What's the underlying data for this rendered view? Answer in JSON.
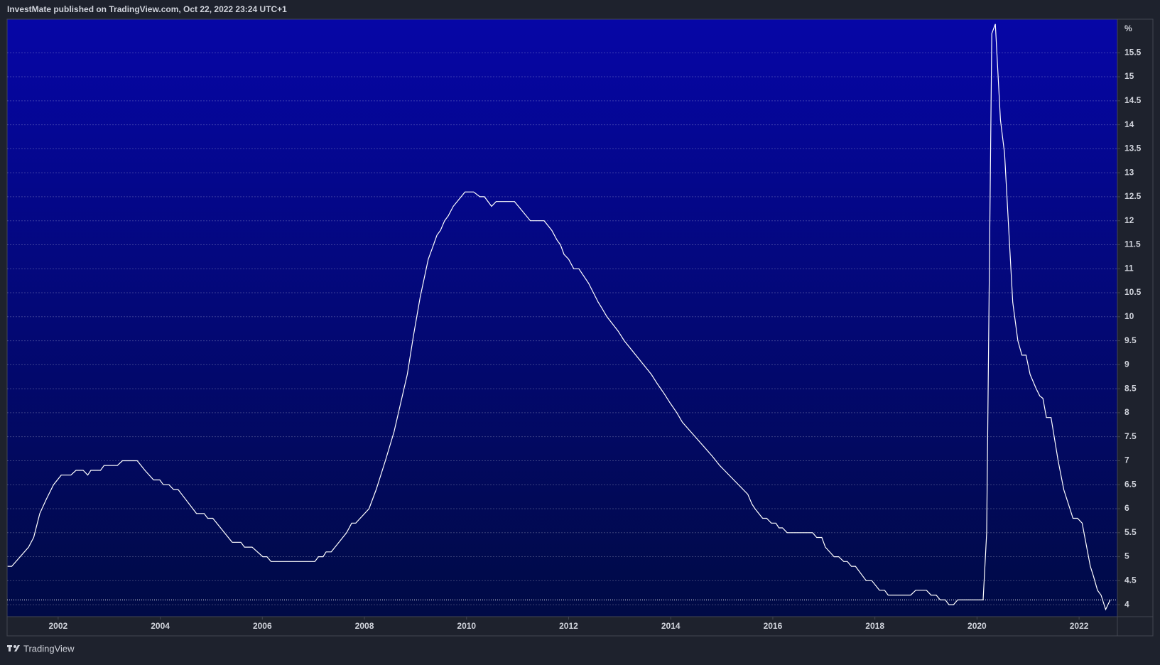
{
  "header": {
    "title": "InvestMate published on TradingView.com, Oct 22, 2022 23:24 UTC+1"
  },
  "footer": {
    "brand": "TradingView"
  },
  "chart_data": {
    "type": "line",
    "unit": "%",
    "color": "#ffffff",
    "grid": true,
    "xlim": [
      2001.0,
      2022.75
    ],
    "xticks": [
      2002,
      2004,
      2006,
      2008,
      2010,
      2012,
      2014,
      2016,
      2018,
      2020,
      2022
    ],
    "ylim": [
      3.75,
      16.2
    ],
    "yticks": [
      4,
      4.5,
      5,
      5.5,
      6,
      6.5,
      7,
      7.5,
      8,
      8.5,
      9,
      9.5,
      10,
      10.5,
      11,
      11.5,
      12,
      12.5,
      13,
      13.5,
      14,
      14.5,
      15,
      15.5
    ],
    "x": [
      2001.01,
      2001.09,
      2001.42,
      2001.52,
      2001.64,
      2001.77,
      2001.91,
      2002.06,
      2002.25,
      2002.35,
      2002.49,
      2002.58,
      2002.64,
      2002.83,
      2002.9,
      2003.16,
      2003.26,
      2003.55,
      2003.7,
      2003.87,
      2003.99,
      2004.06,
      2004.17,
      2004.26,
      2004.35,
      2004.71,
      2004.86,
      2004.93,
      2005.03,
      2005.41,
      2005.58,
      2005.65,
      2005.8,
      2006.01,
      2006.09,
      2006.17,
      2007.03,
      2007.1,
      2007.19,
      2007.25,
      2007.35,
      2007.65,
      2007.75,
      2007.83,
      2008.09,
      2008.23,
      2008.41,
      2008.58,
      2008.84,
      2008.96,
      2009.09,
      2009.25,
      2009.32,
      2009.42,
      2009.49,
      2009.57,
      2009.64,
      2009.74,
      2009.97,
      2010.14,
      2010.26,
      2010.35,
      2010.49,
      2010.58,
      2010.94,
      2011.25,
      2011.52,
      2011.67,
      2011.77,
      2011.84,
      2011.91,
      2012.0,
      2012.1,
      2012.2,
      2012.39,
      2012.58,
      2012.64,
      2012.75,
      2012.97,
      2013.09,
      2013.62,
      2013.74,
      2013.87,
      2013.99,
      2014.12,
      2014.23,
      2014.81,
      2014.96,
      2015.51,
      2015.59,
      2015.65,
      2015.8,
      2015.88,
      2015.97,
      2016.06,
      2016.12,
      2016.19,
      2016.28,
      2016.78,
      2016.86,
      2016.96,
      2017.03,
      2017.2,
      2017.29,
      2017.39,
      2017.46,
      2017.54,
      2017.62,
      2017.83,
      2017.94,
      2018.09,
      2018.19,
      2018.26,
      2018.7,
      2018.8,
      2019.01,
      2019.1,
      2019.2,
      2019.28,
      2019.38,
      2019.45,
      2019.54,
      2019.62,
      2020.12,
      2020.19,
      2020.29,
      2020.36,
      2020.46,
      2020.54,
      2020.7,
      2020.8,
      2020.88,
      2020.96,
      2021.04,
      2021.16,
      2021.23,
      2021.29,
      2021.36,
      2021.45,
      2021.59,
      2021.7,
      2021.88,
      2021.97,
      2022.06,
      2022.22,
      2022.28,
      2022.36,
      2022.43,
      2022.52,
      2022.61
    ],
    "values": [
      4.8,
      4.8,
      5.2,
      5.4,
      5.9,
      6.2,
      6.5,
      6.7,
      6.7,
      6.8,
      6.8,
      6.7,
      6.8,
      6.8,
      6.9,
      6.9,
      7.0,
      7.0,
      6.8,
      6.6,
      6.6,
      6.5,
      6.5,
      6.4,
      6.4,
      5.9,
      5.9,
      5.8,
      5.8,
      5.3,
      5.3,
      5.2,
      5.2,
      5.0,
      5.0,
      4.9,
      4.9,
      5.0,
      5.0,
      5.1,
      5.1,
      5.5,
      5.7,
      5.7,
      6.0,
      6.4,
      7.0,
      7.6,
      8.8,
      9.6,
      10.4,
      11.2,
      11.4,
      11.7,
      11.8,
      12.0,
      12.1,
      12.3,
      12.6,
      12.6,
      12.5,
      12.5,
      12.3,
      12.4,
      12.4,
      12.0,
      12.0,
      11.8,
      11.6,
      11.5,
      11.3,
      11.2,
      11.0,
      11.0,
      10.7,
      10.3,
      10.2,
      10.0,
      9.7,
      9.5,
      8.8,
      8.6,
      8.4,
      8.2,
      8.0,
      7.8,
      7.1,
      6.9,
      6.3,
      6.1,
      6.0,
      5.8,
      5.8,
      5.7,
      5.7,
      5.6,
      5.6,
      5.5,
      5.5,
      5.4,
      5.4,
      5.2,
      5.0,
      5.0,
      4.9,
      4.9,
      4.8,
      4.8,
      4.5,
      4.5,
      4.3,
      4.3,
      4.2,
      4.2,
      4.3,
      4.3,
      4.2,
      4.2,
      4.1,
      4.1,
      4.0,
      4.0,
      4.1,
      4.1,
      5.5,
      15.9,
      16.1,
      14.1,
      13.4,
      10.3,
      9.5,
      9.2,
      9.2,
      8.8,
      8.5,
      8.35,
      8.3,
      7.9,
      7.9,
      7.0,
      6.4,
      5.8,
      5.8,
      5.7,
      4.8,
      4.6,
      4.3,
      4.2,
      3.9,
      4.1
    ]
  }
}
